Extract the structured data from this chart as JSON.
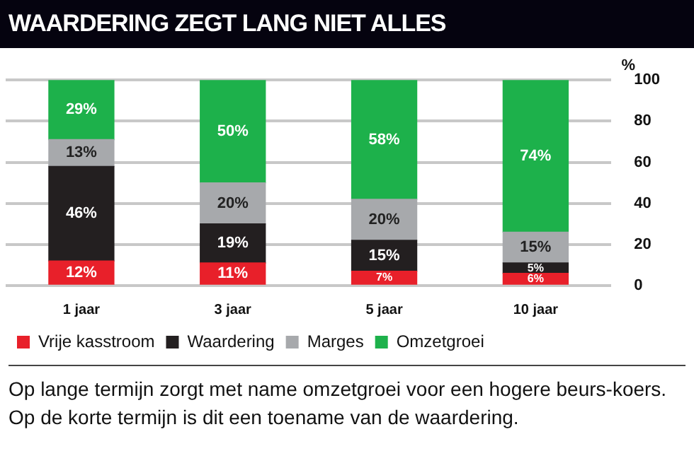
{
  "chart_data": {
    "type": "bar",
    "title": "WAARDERING ZEGT LANG NIET ALLES",
    "ylabel": "%",
    "categories": [
      "1 jaar",
      "3 jaar",
      "5 jaar",
      "10 jaar"
    ],
    "stacked": true,
    "series": [
      {
        "name": "Vrije kasstroom",
        "color": "#e8202a",
        "values": [
          12,
          11,
          7,
          6
        ],
        "value_labels": [
          "12%",
          "11%",
          "7%",
          "6%"
        ]
      },
      {
        "name": "Waardering",
        "color": "#231f20",
        "values": [
          46,
          19,
          15,
          5
        ],
        "value_labels": [
          "46%",
          "19%",
          "15%",
          "5%"
        ]
      },
      {
        "name": "Marges",
        "color": "#a7a9ac",
        "values": [
          13,
          20,
          20,
          15
        ],
        "value_labels": [
          "13%",
          "20%",
          "20%",
          "15%"
        ]
      },
      {
        "name": "Omzetgroei",
        "color": "#1db14b",
        "values": [
          29,
          50,
          58,
          74
        ],
        "value_labels": [
          "29%",
          "50%",
          "58%",
          "74%"
        ]
      }
    ],
    "ylim": [
      0,
      100
    ],
    "yticks": [
      0,
      20,
      40,
      60,
      80,
      100
    ],
    "grid": "y",
    "legend": "bottom left",
    "annotations": [
      "Op lange termijn zorgt met name omzetgroei voor een hogere beurs-koers. Op de korte termijn is dit een toename van de waardering."
    ]
  }
}
